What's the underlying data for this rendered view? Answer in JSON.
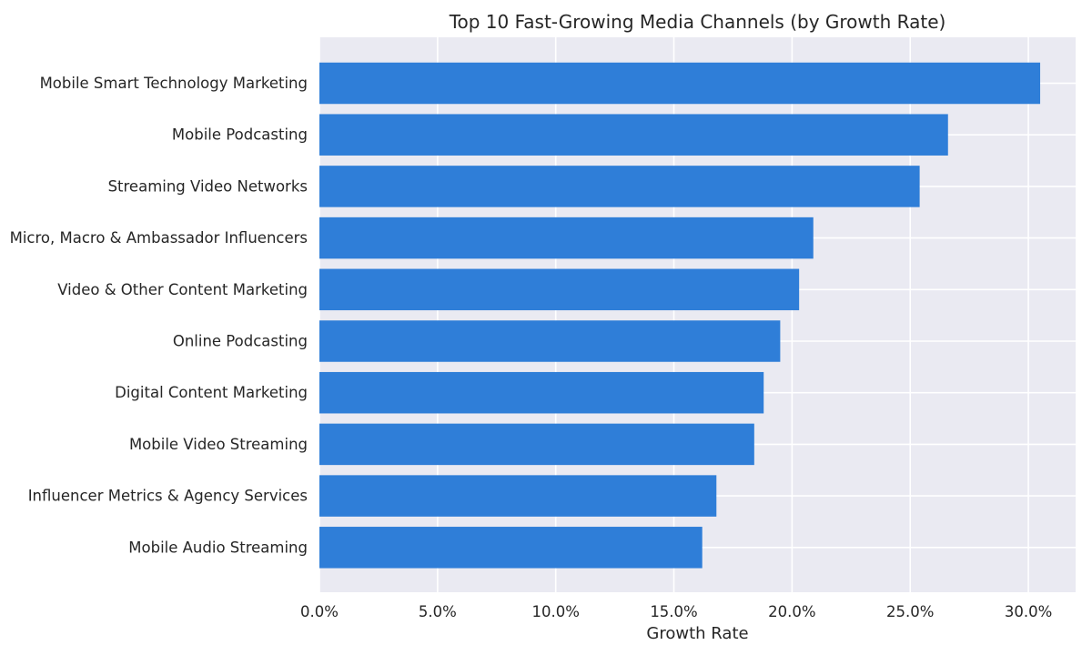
{
  "chart_data": {
    "type": "bar",
    "orientation": "horizontal",
    "title": "Top 10 Fast-Growing Media Channels (by Growth Rate)",
    "xlabel": "Growth Rate",
    "ylabel": "",
    "xlim": [
      0,
      0.32
    ],
    "x_ticks": [
      0,
      0.05,
      0.1,
      0.15,
      0.2,
      0.25,
      0.3
    ],
    "x_tick_labels": [
      "0.0%",
      "5.0%",
      "10.0%",
      "15.0%",
      "20.0%",
      "25.0%",
      "30.0%"
    ],
    "grid": true,
    "categories": [
      "Mobile Smart Technology Marketing",
      "Mobile Podcasting",
      "Streaming Video Networks",
      "Micro, Macro & Ambassador Influencers",
      "Video & Other Content Marketing",
      "Online Podcasting",
      "Digital Content Marketing",
      "Mobile Video Streaming",
      "Influencer Metrics & Agency Services",
      "Mobile Audio Streaming"
    ],
    "values": [
      0.305,
      0.266,
      0.254,
      0.209,
      0.203,
      0.195,
      0.188,
      0.184,
      0.168,
      0.162
    ],
    "colors": {
      "bar": "#2f7ed8",
      "plot_background": "#eaeaf2",
      "grid": "#ffffff",
      "text": "#262626"
    }
  }
}
